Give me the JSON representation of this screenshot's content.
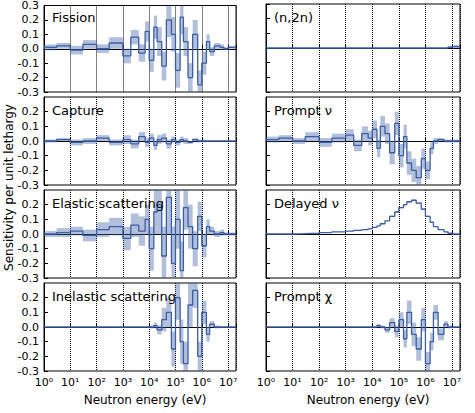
{
  "chart_data": [
    {
      "type": "line",
      "title": "Fission",
      "ylabel": "Sensitivity per unit lethargy",
      "bins": [
        1,
        3,
        10,
        30,
        100,
        300,
        1000,
        2000,
        4000,
        7000,
        10000,
        15000,
        20000,
        30000,
        45000,
        70000,
        100000,
        150000,
        200000,
        300000,
        450000,
        700000,
        1000000,
        1500000,
        2000000,
        3000000,
        5000000,
        7000000,
        10000000,
        20000000
      ],
      "values": [
        0.01,
        0.02,
        -0.01,
        0.03,
        0.0,
        0.04,
        -0.05,
        0.08,
        -0.03,
        0.12,
        -0.08,
        0.15,
        0.05,
        -0.12,
        0.2,
        0.1,
        -0.15,
        0.22,
        0.05,
        -0.2,
        0.1,
        -0.25,
        -0.1,
        0.05,
        -0.02,
        0.02,
        0.01,
        0.0,
        0.01
      ],
      "uncertainty": [
        0.02,
        0.02,
        0.03,
        0.03,
        0.03,
        0.04,
        0.05,
        0.05,
        0.06,
        0.07,
        0.08,
        0.08,
        0.1,
        0.1,
        0.12,
        0.12,
        0.12,
        0.12,
        0.1,
        0.1,
        0.1,
        0.1,
        0.08,
        0.05,
        0.03,
        0.02,
        0.02,
        0.01,
        0.01
      ],
      "color": "#3b5ea4",
      "log": "x",
      "grid": "x",
      "tick_labels": "y",
      "xlim": [
        1,
        20000000
      ],
      "xticks": [
        {
          "value": 1,
          "label": "10⁰"
        },
        {
          "value": 10,
          "label": "10¹"
        },
        {
          "value": 100,
          "label": "10²"
        },
        {
          "value": 1000,
          "label": "10³"
        },
        {
          "value": 10000,
          "label": "10⁴"
        },
        {
          "value": 100000,
          "label": "10⁵"
        },
        {
          "value": 1000000,
          "label": "10⁶"
        },
        {
          "value": 10000000,
          "label": "10⁷"
        }
      ],
      "ylim": [
        -0.3,
        0.3
      ],
      "yticks": [
        -0.3,
        -0.2,
        -0.1,
        {
          "value": 0,
          "label": "0.0"
        },
        0.1,
        0.2,
        0.3
      ]
    },
    {
      "type": "line",
      "title": "(n,2n)",
      "bins": [
        1,
        3,
        10,
        30,
        100,
        300,
        1000,
        2000,
        4000,
        7000,
        10000,
        15000,
        20000,
        30000,
        45000,
        70000,
        100000,
        150000,
        200000,
        300000,
        450000,
        700000,
        1000000,
        1500000,
        2000000,
        3000000,
        5000000,
        7000000,
        10000000,
        20000000
      ],
      "values": [
        0,
        0,
        0,
        0,
        0,
        0,
        0,
        0,
        0,
        0,
        0,
        0,
        0,
        0,
        0,
        0,
        0,
        0,
        0,
        0,
        0,
        0,
        0,
        0,
        0,
        0,
        0,
        0.005,
        0.01
      ],
      "uncertainty": [
        0,
        0,
        0,
        0,
        0,
        0,
        0,
        0,
        0,
        0,
        0,
        0,
        0,
        0,
        0,
        0,
        0,
        0,
        0,
        0,
        0,
        0,
        0,
        0,
        0,
        0,
        0,
        0.005,
        0.01
      ],
      "color": "#3b5ea4",
      "log": "x",
      "grid": "x",
      "tick_labels": false,
      "xlim": [
        1,
        20000000
      ],
      "xticks": [
        {
          "value": 1,
          "label": "10⁰"
        },
        {
          "value": 10,
          "label": "10¹"
        },
        {
          "value": 100,
          "label": "10²"
        },
        {
          "value": 1000,
          "label": "10³"
        },
        {
          "value": 10000,
          "label": "10⁴"
        },
        {
          "value": 100000,
          "label": "10⁵"
        },
        {
          "value": 1000000,
          "label": "10⁶"
        },
        {
          "value": 10000000,
          "label": "10⁷"
        }
      ],
      "ylim": [
        -0.3,
        0.3
      ],
      "yticks": [
        -0.3,
        -0.2,
        -0.1,
        {
          "value": 0,
          "label": "0.0"
        },
        0.1,
        0.2,
        0.3
      ]
    },
    {
      "type": "line",
      "title": "Capture",
      "bins": [
        1,
        3,
        10,
        30,
        100,
        300,
        1000,
        2000,
        4000,
        7000,
        10000,
        15000,
        20000,
        30000,
        45000,
        70000,
        100000,
        150000,
        200000,
        300000,
        450000,
        700000,
        1000000,
        1500000,
        2000000,
        3000000,
        5000000,
        7000000,
        10000000,
        20000000
      ],
      "values": [
        0.0,
        0.01,
        -0.01,
        0.0,
        0.02,
        -0.01,
        0.01,
        -0.02,
        0.03,
        -0.01,
        0.02,
        -0.03,
        0.01,
        0.02,
        -0.02,
        0.01,
        -0.01,
        0.01,
        0.0,
        -0.01,
        0.01,
        0.0,
        0.0,
        0.0,
        0.0,
        0.0,
        0.0,
        0.0,
        0.0
      ],
      "uncertainty": [
        0.01,
        0.01,
        0.02,
        0.02,
        0.02,
        0.02,
        0.03,
        0.03,
        0.03,
        0.03,
        0.03,
        0.03,
        0.03,
        0.03,
        0.03,
        0.02,
        0.02,
        0.02,
        0.02,
        0.01,
        0.01,
        0.01,
        0.01,
        0.0,
        0.0,
        0.0,
        0.0,
        0.0,
        0.0
      ],
      "color": "#3b5ea4",
      "log": "x",
      "grid": "x",
      "tick_labels": "y",
      "xlim": [
        1,
        20000000
      ],
      "xticks": [
        {
          "value": 1,
          "label": "10⁰"
        },
        {
          "value": 10,
          "label": "10¹"
        },
        {
          "value": 100,
          "label": "10²"
        },
        {
          "value": 1000,
          "label": "10³"
        },
        {
          "value": 10000,
          "label": "10⁴"
        },
        {
          "value": 100000,
          "label": "10⁵"
        },
        {
          "value": 1000000,
          "label": "10⁶"
        },
        {
          "value": 10000000,
          "label": "10⁷"
        }
      ],
      "ylim": [
        -0.3,
        0.3
      ],
      "yticks": [
        -0.3,
        -0.2,
        -0.1,
        {
          "value": 0,
          "label": "0.0"
        },
        0.1,
        0.2
      ]
    },
    {
      "type": "line",
      "title": "Prompt ν",
      "bins": [
        1,
        3,
        10,
        30,
        100,
        300,
        1000,
        2000,
        4000,
        7000,
        10000,
        15000,
        20000,
        30000,
        45000,
        70000,
        100000,
        150000,
        200000,
        300000,
        450000,
        700000,
        1000000,
        1500000,
        2000000,
        3000000,
        5000000,
        7000000,
        10000000,
        20000000
      ],
      "values": [
        0.01,
        0.02,
        0.0,
        0.03,
        -0.01,
        0.02,
        0.04,
        -0.03,
        0.05,
        0.02,
        0.08,
        -0.05,
        0.1,
        0.05,
        -0.08,
        0.12,
        -0.1,
        0.03,
        -0.15,
        -0.2,
        -0.25,
        -0.12,
        -0.2,
        -0.05,
        0.0,
        0.01,
        0.0,
        0.0,
        0.0
      ],
      "uncertainty": [
        0.02,
        0.02,
        0.02,
        0.03,
        0.03,
        0.03,
        0.04,
        0.04,
        0.05,
        0.05,
        0.06,
        0.06,
        0.07,
        0.07,
        0.08,
        0.08,
        0.08,
        0.08,
        0.08,
        0.08,
        0.08,
        0.07,
        0.06,
        0.04,
        0.02,
        0.01,
        0.01,
        0.01,
        0.01
      ],
      "color": "#3b5ea4",
      "log": "x",
      "grid": "x",
      "tick_labels": false,
      "xlim": [
        1,
        20000000
      ],
      "xticks": [
        {
          "value": 1,
          "label": "10⁰"
        },
        {
          "value": 10,
          "label": "10¹"
        },
        {
          "value": 100,
          "label": "10²"
        },
        {
          "value": 1000,
          "label": "10³"
        },
        {
          "value": 10000,
          "label": "10⁴"
        },
        {
          "value": 100000,
          "label": "10⁵"
        },
        {
          "value": 1000000,
          "label": "10⁶"
        },
        {
          "value": 10000000,
          "label": "10⁷"
        }
      ],
      "ylim": [
        -0.3,
        0.3
      ],
      "yticks": [
        -0.3,
        -0.2,
        -0.1,
        {
          "value": 0,
          "label": "0.0"
        },
        0.1,
        0.2
      ]
    },
    {
      "type": "line",
      "title": "Elastic scattering",
      "bins": [
        1,
        3,
        10,
        30,
        100,
        300,
        1000,
        2000,
        4000,
        7000,
        10000,
        15000,
        20000,
        30000,
        45000,
        70000,
        100000,
        150000,
        200000,
        300000,
        450000,
        700000,
        1000000,
        1500000,
        2000000,
        3000000,
        5000000,
        7000000,
        10000000,
        20000000
      ],
      "values": [
        0.0,
        0.01,
        0.02,
        -0.01,
        0.03,
        0.05,
        -0.03,
        0.06,
        0.02,
        0.1,
        -0.1,
        0.15,
        0.2,
        -0.15,
        0.25,
        -0.2,
        0.1,
        -0.25,
        0.18,
        0.05,
        -0.1,
        0.12,
        -0.08,
        0.05,
        0.02,
        0.0,
        0.01,
        0.0,
        0.0
      ],
      "uncertainty": [
        0.02,
        0.03,
        0.03,
        0.04,
        0.05,
        0.06,
        0.08,
        0.08,
        0.1,
        0.1,
        0.15,
        0.15,
        0.2,
        0.2,
        0.25,
        0.25,
        0.2,
        0.2,
        0.15,
        0.15,
        0.12,
        0.1,
        0.08,
        0.05,
        0.03,
        0.02,
        0.02,
        0.01,
        0.01
      ],
      "color": "#3b5ea4",
      "log": "x",
      "grid": "x",
      "tick_labels": "y",
      "xlim": [
        1,
        20000000
      ],
      "xticks": [
        {
          "value": 1,
          "label": "10⁰"
        },
        {
          "value": 10,
          "label": "10¹"
        },
        {
          "value": 100,
          "label": "10²"
        },
        {
          "value": 1000,
          "label": "10³"
        },
        {
          "value": 10000,
          "label": "10⁴"
        },
        {
          "value": 100000,
          "label": "10⁵"
        },
        {
          "value": 1000000,
          "label": "10⁶"
        },
        {
          "value": 10000000,
          "label": "10⁷"
        }
      ],
      "ylim": [
        -0.3,
        0.3
      ],
      "yticks": [
        -0.3,
        -0.2,
        -0.1,
        {
          "value": 0,
          "label": "0.0"
        },
        0.1,
        0.2
      ]
    },
    {
      "type": "line",
      "title": "Delayed ν",
      "bins": [
        1,
        3,
        10,
        30,
        100,
        300,
        1000,
        2000,
        4000,
        7000,
        10000,
        15000,
        20000,
        30000,
        45000,
        70000,
        100000,
        150000,
        200000,
        300000,
        450000,
        700000,
        1000000,
        1500000,
        2000000,
        3000000,
        5000000,
        7000000,
        10000000,
        20000000
      ],
      "values": [
        0.0,
        0.0,
        0.002,
        0.005,
        0.01,
        0.015,
        0.02,
        0.025,
        0.03,
        0.035,
        0.045,
        0.055,
        0.07,
        0.09,
        0.12,
        0.15,
        0.18,
        0.2,
        0.22,
        0.23,
        0.21,
        0.17,
        0.12,
        0.08,
        0.05,
        0.03,
        0.015,
        0.005,
        0.0
      ],
      "uncertainty": [
        0.0,
        0.0,
        0.0,
        0.0,
        0.0,
        0.0,
        0.0,
        0.0,
        0.0,
        0.0,
        0.0,
        0.0,
        0.0,
        0.0,
        0.005,
        0.005,
        0.005,
        0.005,
        0.005,
        0.005,
        0.005,
        0.005,
        0.005,
        0.0,
        0.0,
        0.0,
        0.0,
        0.0,
        0.0
      ],
      "color": "#3b5ea4",
      "log": "x",
      "grid": "x",
      "tick_labels": false,
      "xlim": [
        1,
        20000000
      ],
      "xticks": [
        {
          "value": 1,
          "label": "10⁰"
        },
        {
          "value": 10,
          "label": "10¹"
        },
        {
          "value": 100,
          "label": "10²"
        },
        {
          "value": 1000,
          "label": "10³"
        },
        {
          "value": 10000,
          "label": "10⁴"
        },
        {
          "value": 100000,
          "label": "10⁵"
        },
        {
          "value": 1000000,
          "label": "10⁶"
        },
        {
          "value": 10000000,
          "label": "10⁷"
        }
      ],
      "ylim": [
        -0.3,
        0.3
      ],
      "yticks": [
        -0.3,
        -0.2,
        -0.1,
        {
          "value": 0,
          "label": "0.0"
        },
        0.1,
        0.2
      ]
    },
    {
      "type": "line",
      "title": "Inelastic scattering",
      "xlabel": "Neutron energy (eV)",
      "bins": [
        1,
        3,
        10,
        30,
        100,
        300,
        1000,
        2000,
        4000,
        7000,
        10000,
        15000,
        20000,
        30000,
        45000,
        70000,
        100000,
        150000,
        200000,
        300000,
        450000,
        700000,
        1000000,
        1500000,
        2000000,
        3000000,
        5000000,
        7000000,
        10000000,
        20000000
      ],
      "values": [
        0,
        0,
        0,
        0,
        0,
        0,
        0,
        0,
        0,
        0,
        0.0,
        0.01,
        -0.02,
        0.05,
        0.1,
        -0.15,
        0.2,
        -0.1,
        -0.25,
        0.15,
        0.25,
        -0.2,
        0.1,
        -0.05,
        0.02,
        0.0,
        0.0,
        0.0,
        0.0
      ],
      "uncertainty": [
        0,
        0,
        0,
        0,
        0,
        0,
        0,
        0,
        0,
        0,
        0.01,
        0.02,
        0.03,
        0.08,
        0.1,
        0.12,
        0.15,
        0.15,
        0.15,
        0.15,
        0.12,
        0.1,
        0.08,
        0.05,
        0.02,
        0.01,
        0.0,
        0.0,
        0.0
      ],
      "color": "#3b5ea4",
      "log": "x",
      "grid": "x",
      "tick_labels": true,
      "xlim": [
        1,
        20000000
      ],
      "xticks": [
        {
          "value": 1,
          "label": "10⁰"
        },
        {
          "value": 10,
          "label": "10¹"
        },
        {
          "value": 100,
          "label": "10²"
        },
        {
          "value": 1000,
          "label": "10³"
        },
        {
          "value": 10000,
          "label": "10⁴"
        },
        {
          "value": 100000,
          "label": "10⁵"
        },
        {
          "value": 1000000,
          "label": "10⁶"
        },
        {
          "value": 10000000,
          "label": "10⁷"
        }
      ],
      "ylim": [
        -0.3,
        0.3
      ],
      "yticks": [
        -0.3,
        -0.2,
        -0.1,
        {
          "value": 0,
          "label": "0.0"
        },
        0.1,
        0.2
      ]
    },
    {
      "type": "line",
      "title": "Prompt χ",
      "xlabel": "Neutron energy (eV)",
      "bins": [
        1,
        3,
        10,
        30,
        100,
        300,
        1000,
        2000,
        4000,
        7000,
        10000,
        15000,
        20000,
        30000,
        45000,
        70000,
        100000,
        150000,
        200000,
        300000,
        450000,
        700000,
        1000000,
        1500000,
        2000000,
        3000000,
        5000000,
        7000000,
        10000000,
        20000000
      ],
      "values": [
        0,
        0,
        0,
        0,
        0,
        0,
        0,
        0,
        0,
        0,
        0.0,
        0.01,
        0.0,
        -0.02,
        0.03,
        -0.03,
        0.05,
        -0.08,
        0.1,
        -0.05,
        -0.15,
        0.05,
        -0.25,
        -0.1,
        0.1,
        -0.05,
        0.02,
        0.0,
        0.0
      ],
      "uncertainty": [
        0,
        0,
        0,
        0,
        0,
        0,
        0,
        0,
        0,
        0,
        0.005,
        0.01,
        0.01,
        0.02,
        0.03,
        0.04,
        0.05,
        0.06,
        0.08,
        0.08,
        0.08,
        0.08,
        0.08,
        0.06,
        0.05,
        0.04,
        0.02,
        0.01,
        0.0
      ],
      "color": "#3b5ea4",
      "log": "x",
      "grid": "x",
      "tick_labels": "x",
      "xlim": [
        1,
        20000000
      ],
      "xticks": [
        {
          "value": 1,
          "label": "10⁰"
        },
        {
          "value": 10,
          "label": "10¹"
        },
        {
          "value": 100,
          "label": "10²"
        },
        {
          "value": 1000,
          "label": "10³"
        },
        {
          "value": 10000,
          "label": "10⁴"
        },
        {
          "value": 100000,
          "label": "10⁵"
        },
        {
          "value": 1000000,
          "label": "10⁶"
        },
        {
          "value": 10000000,
          "label": "10⁷"
        }
      ],
      "ylim": [
        -0.3,
        0.3
      ],
      "yticks": [
        -0.3,
        -0.2,
        -0.1,
        {
          "value": 0,
          "label": "0.0"
        },
        0.1,
        0.2
      ]
    }
  ]
}
